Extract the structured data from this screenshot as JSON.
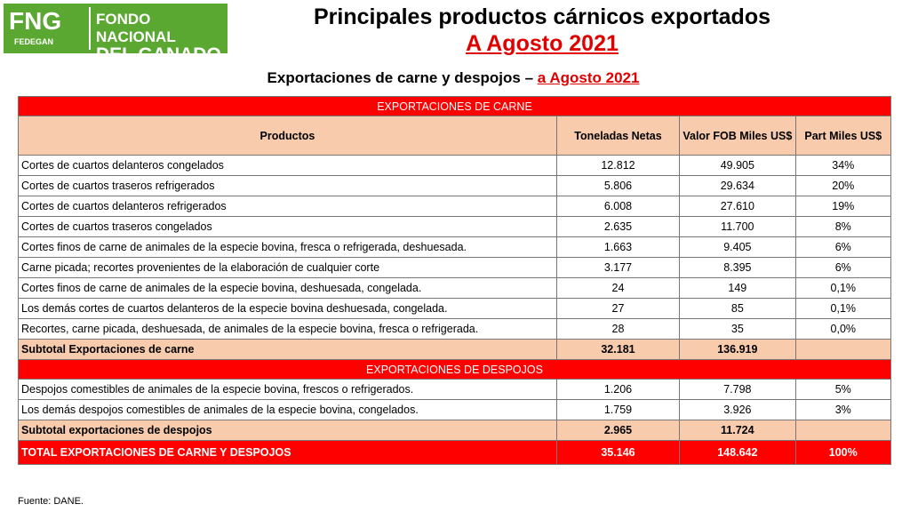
{
  "logo": {
    "mark": "FNG",
    "sub": "FEDEGAN",
    "name_line1": "FONDO NACIONAL",
    "name_line2": "DEL GANADO"
  },
  "header": {
    "title": "Principales productos cárnicos exportados",
    "date": "A Agosto 2021"
  },
  "subtitle": {
    "text": "Exportaciones de carne y despojos –",
    "date": "a Agosto 2021"
  },
  "table": {
    "section_carne": "EXPORTACIONES DE CARNE",
    "columns": [
      "Productos",
      "Toneladas Netas",
      "Valor FOB Miles US$",
      "Part Miles US$"
    ],
    "rows_carne": [
      [
        "Cortes de cuartos delanteros congelados",
        "12.812",
        "49.905",
        "34%"
      ],
      [
        "Cortes de cuartos traseros refrigerados",
        "5.806",
        "29.634",
        "20%"
      ],
      [
        "Cortes de cuartos delanteros refrigerados",
        "6.008",
        "27.610",
        "19%"
      ],
      [
        "Cortes de cuartos traseros congelados",
        "2.635",
        "11.700",
        "8%"
      ],
      [
        "Cortes finos de carne de animales de la especie bovina, fresca o refrigerada, deshuesada.",
        "1.663",
        "9.405",
        "6%"
      ],
      [
        "Carne picada; recortes provenientes de la elaboración de cualquier corte",
        "3.177",
        "8.395",
        "6%"
      ],
      [
        "Cortes finos de carne de animales de la especie bovina, deshuesada, congelada.",
        "24",
        "149",
        "0,1%"
      ],
      [
        "Los demás cortes de cuartos delanteros de la especie bovina deshuesada, congelada.",
        "27",
        "85",
        "0,1%"
      ],
      [
        "Recortes, carne picada, deshuesada, de animales de la especie bovina, fresca o refrigerada.",
        "28",
        "35",
        "0,0%"
      ]
    ],
    "subtotal_carne": [
      "Subtotal Exportaciones de carne",
      "32.181",
      "136.919"
    ],
    "section_despojos": "EXPORTACIONES DE DESPOJOS",
    "rows_despojos": [
      [
        "Despojos comestibles de animales de la especie bovina, frescos o refrigerados.",
        "1.206",
        "7.798",
        "5%"
      ],
      [
        "Los demás despojos comestibles de animales de la especie bovina, congelados.",
        "1.759",
        "3.926",
        "3%"
      ]
    ],
    "subtotal_despojos": [
      "Subtotal exportaciones de despojos",
      "2.965",
      "11.724"
    ],
    "total": [
      "TOTAL EXPORTACIONES DE CARNE Y DESPOJOS",
      "35.146",
      "148.642",
      "100%"
    ]
  },
  "footnote": "Fuente: DANE."
}
